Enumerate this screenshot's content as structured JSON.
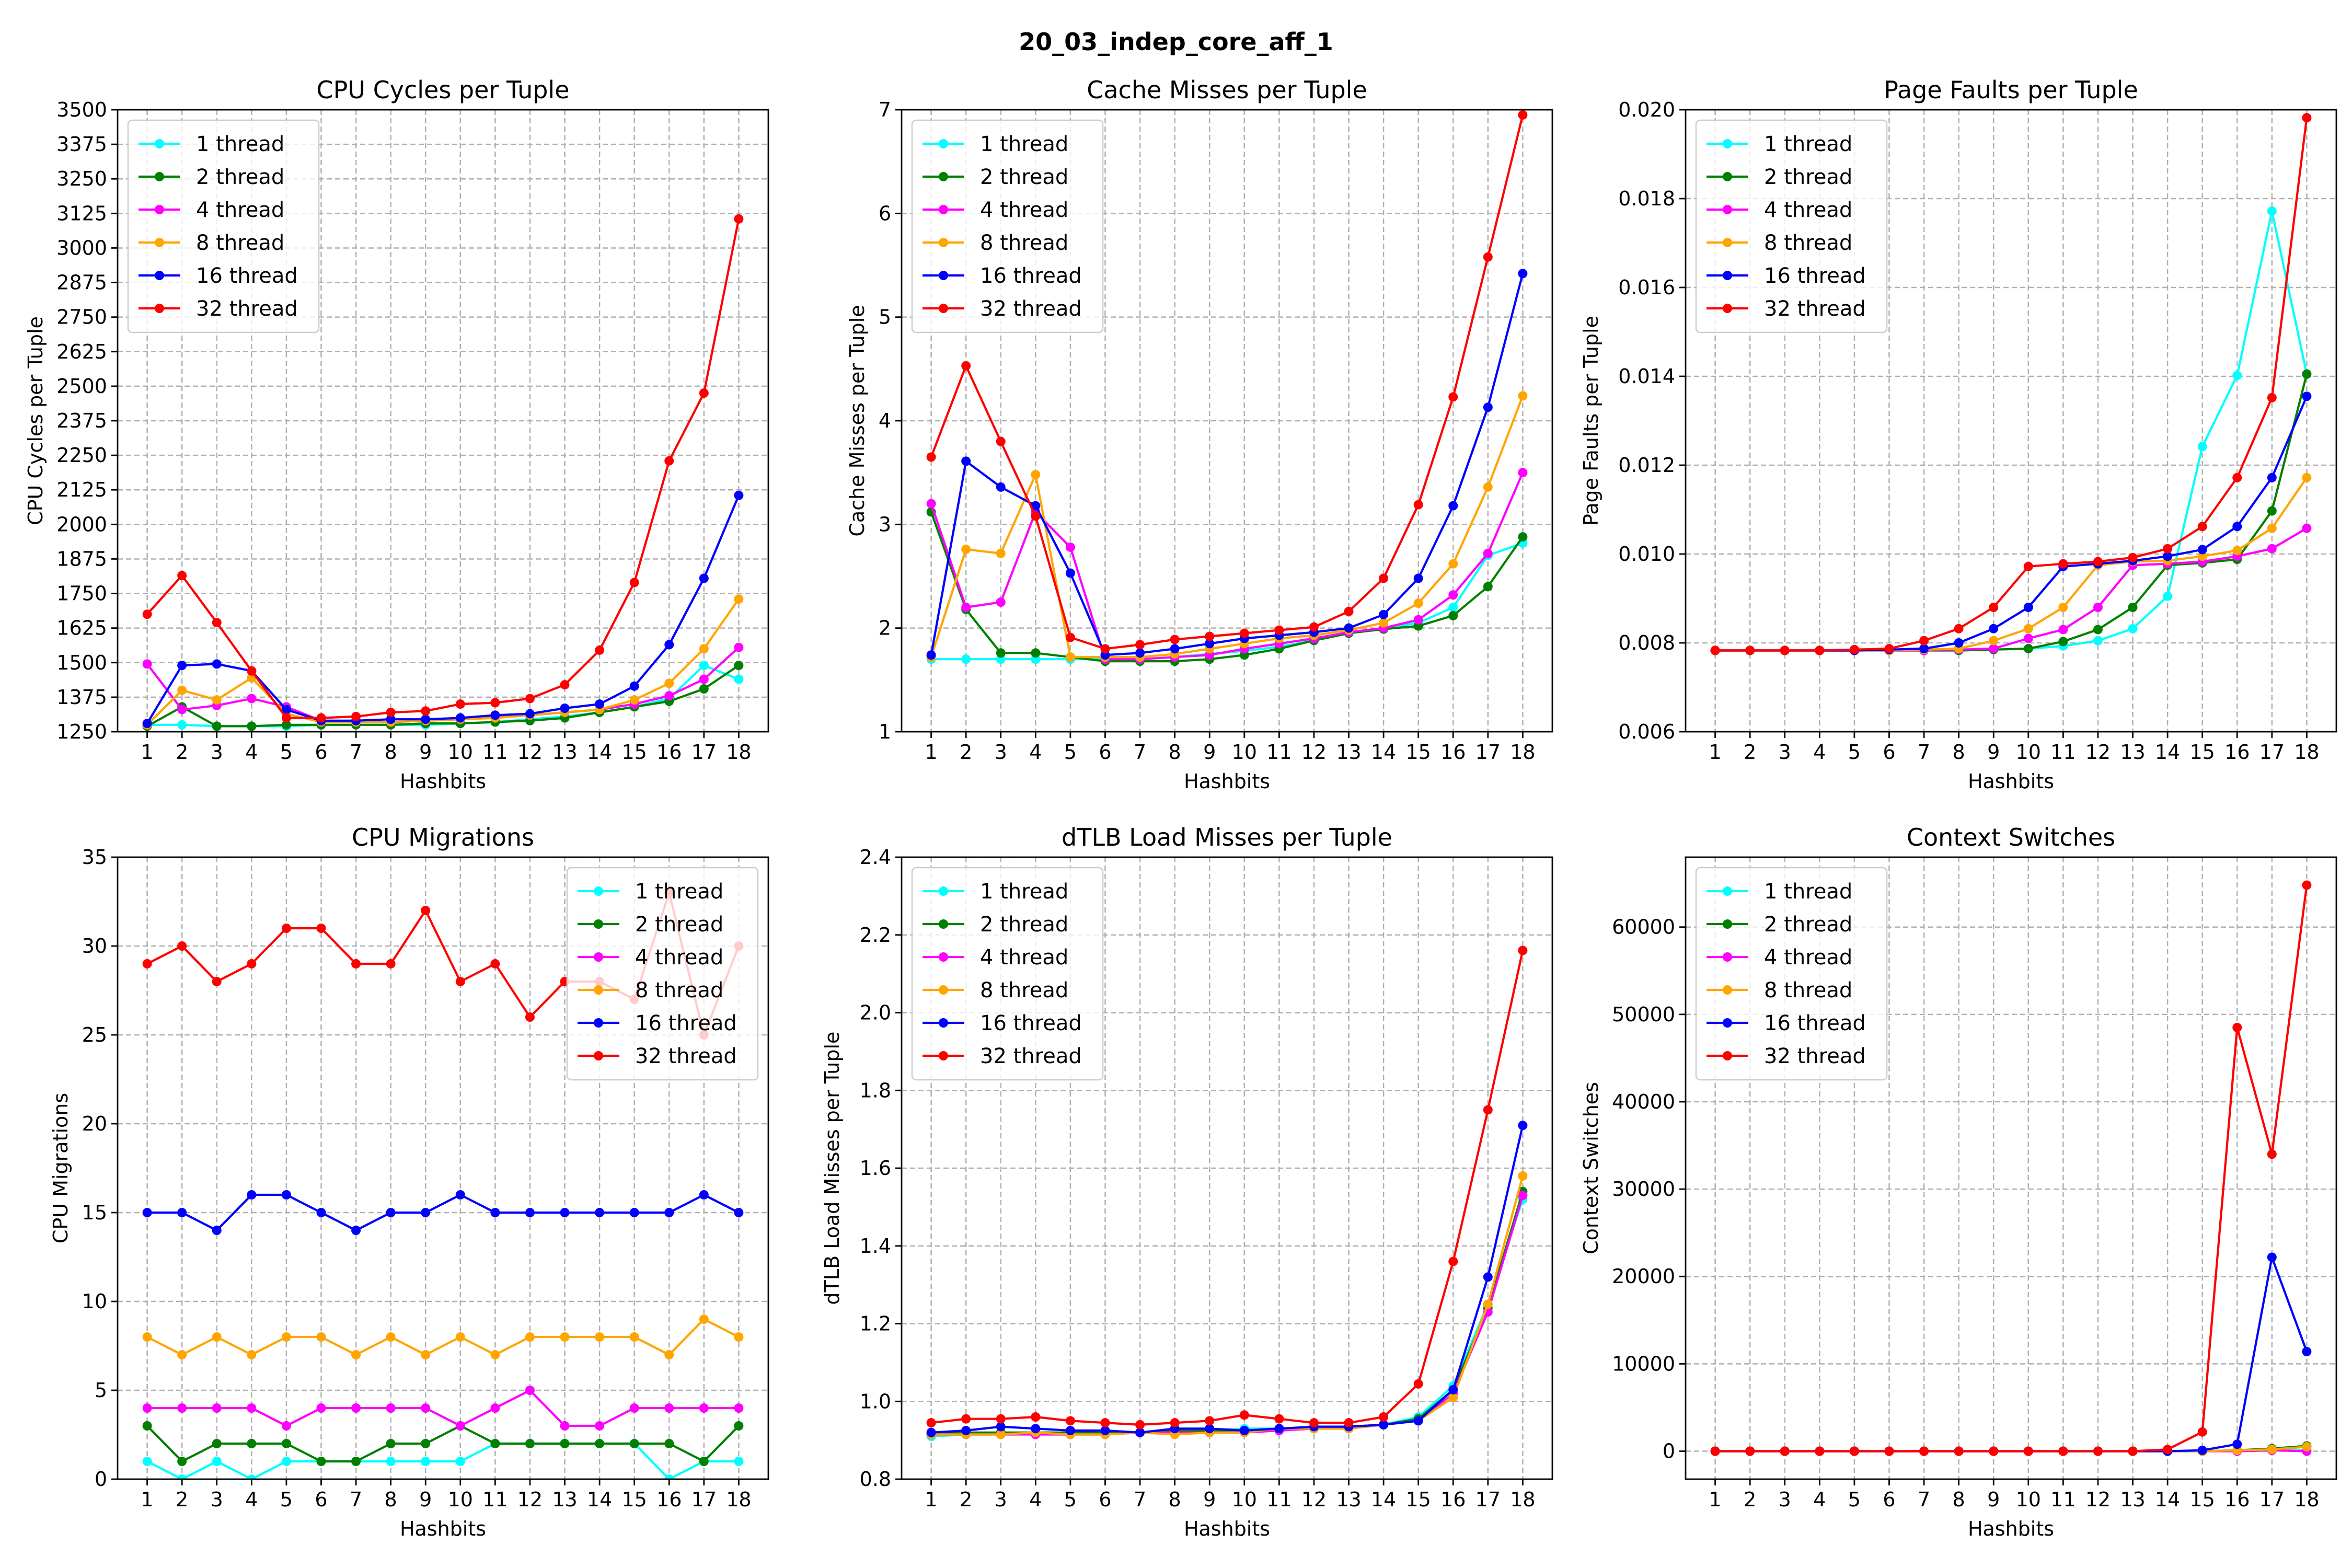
{
  "figure": {
    "title": "20_03_indep_core_aff_1"
  },
  "series_colors": {
    "1 thread": "#00ffff",
    "2 thread": "#008000",
    "4 thread": "#ff00ff",
    "8 thread": "#ffa500",
    "16 thread": "#0000ff",
    "32 thread": "#ff0000"
  },
  "chart_data": [
    {
      "type": "line",
      "title": "CPU Cycles per Tuple",
      "xlabel": "Hashbits",
      "ylabel": "CPU Cycles per Tuple",
      "x": [
        1,
        2,
        3,
        4,
        5,
        6,
        7,
        8,
        9,
        10,
        11,
        12,
        13,
        14,
        15,
        16,
        17,
        18
      ],
      "ylim": [
        1250,
        3500
      ],
      "yticks": [
        1250,
        1375,
        1500,
        1625,
        1750,
        1875,
        2000,
        2125,
        2250,
        2375,
        2500,
        2625,
        2750,
        2875,
        3000,
        3125,
        3250,
        3375,
        3500
      ],
      "legend": "upper-left",
      "grid": true,
      "series": [
        {
          "name": "1 thread",
          "values": [
            1275,
            1275,
            1270,
            1270,
            1270,
            1275,
            1275,
            1275,
            1275,
            1280,
            1285,
            1295,
            1305,
            1320,
            1340,
            1370,
            1490,
            1440
          ]
        },
        {
          "name": "2 thread",
          "values": [
            1270,
            1340,
            1270,
            1270,
            1275,
            1275,
            1275,
            1275,
            1280,
            1280,
            1285,
            1290,
            1300,
            1320,
            1340,
            1360,
            1405,
            1490
          ]
        },
        {
          "name": "4 thread",
          "values": [
            1495,
            1330,
            1345,
            1370,
            1340,
            1290,
            1285,
            1285,
            1290,
            1295,
            1305,
            1310,
            1320,
            1330,
            1350,
            1380,
            1440,
            1555
          ]
        },
        {
          "name": "8 thread",
          "values": [
            1275,
            1400,
            1365,
            1445,
            1315,
            1285,
            1285,
            1285,
            1290,
            1295,
            1300,
            1310,
            1320,
            1330,
            1365,
            1425,
            1550,
            1730
          ]
        },
        {
          "name": "16 thread",
          "values": [
            1280,
            1490,
            1495,
            1470,
            1330,
            1290,
            1290,
            1295,
            1295,
            1300,
            1310,
            1315,
            1335,
            1350,
            1415,
            1565,
            1805,
            2105
          ]
        },
        {
          "name": "32 thread",
          "values": [
            1675,
            1815,
            1645,
            1470,
            1300,
            1300,
            1305,
            1320,
            1325,
            1350,
            1355,
            1370,
            1420,
            1545,
            1790,
            2230,
            2475,
            3105
          ]
        }
      ]
    },
    {
      "type": "line",
      "title": "Cache Misses per Tuple",
      "xlabel": "Hashbits",
      "ylabel": "Cache Misses per Tuple",
      "x": [
        1,
        2,
        3,
        4,
        5,
        6,
        7,
        8,
        9,
        10,
        11,
        12,
        13,
        14,
        15,
        16,
        17,
        18
      ],
      "ylim": [
        1,
        7
      ],
      "yticks": [
        1,
        2,
        3,
        4,
        5,
        6,
        7
      ],
      "legend": "upper-left",
      "grid": true,
      "series": [
        {
          "name": "1 thread",
          "values": [
            1.7,
            1.7,
            1.7,
            1.7,
            1.7,
            1.7,
            1.7,
            1.72,
            1.75,
            1.78,
            1.82,
            1.88,
            1.95,
            2.0,
            2.05,
            2.2,
            2.7,
            2.82
          ]
        },
        {
          "name": "2 thread",
          "values": [
            3.12,
            2.18,
            1.76,
            1.76,
            1.72,
            1.68,
            1.68,
            1.68,
            1.7,
            1.74,
            1.8,
            1.88,
            1.95,
            1.99,
            2.02,
            2.12,
            2.4,
            2.88
          ]
        },
        {
          "name": "4 thread",
          "values": [
            3.2,
            2.2,
            2.25,
            3.12,
            2.78,
            1.7,
            1.7,
            1.72,
            1.74,
            1.8,
            1.85,
            1.9,
            1.96,
            2.0,
            2.08,
            2.32,
            2.72,
            3.5
          ]
        },
        {
          "name": "8 thread",
          "values": [
            1.72,
            2.76,
            2.72,
            3.48,
            1.72,
            1.72,
            1.72,
            1.75,
            1.8,
            1.85,
            1.9,
            1.93,
            1.98,
            2.05,
            2.24,
            2.62,
            3.36,
            4.24
          ]
        },
        {
          "name": "16 thread",
          "values": [
            1.74,
            3.61,
            3.36,
            3.18,
            2.53,
            1.74,
            1.76,
            1.8,
            1.85,
            1.9,
            1.93,
            1.96,
            2.0,
            2.13,
            2.48,
            3.18,
            4.13,
            5.42
          ]
        },
        {
          "name": "32 thread",
          "values": [
            3.65,
            4.53,
            3.8,
            3.08,
            1.91,
            1.8,
            1.84,
            1.89,
            1.92,
            1.95,
            1.98,
            2.01,
            2.16,
            2.48,
            3.19,
            4.23,
            5.58,
            6.95
          ]
        }
      ]
    },
    {
      "type": "line",
      "title": "Page Faults per Tuple",
      "xlabel": "Hashbits",
      "ylabel": "Page Faults per Tuple",
      "x": [
        1,
        2,
        3,
        4,
        5,
        6,
        7,
        8,
        9,
        10,
        11,
        12,
        13,
        14,
        15,
        16,
        17,
        18
      ],
      "ylim": [
        0.006,
        0.02
      ],
      "yticks": [
        0.006,
        0.008,
        0.01,
        0.012,
        0.014,
        0.016,
        0.018,
        0.02
      ],
      "ytick_labels": [
        "0.006",
        "0.008",
        "0.010",
        "0.012",
        "0.014",
        "0.016",
        "0.018",
        "0.020"
      ],
      "legend": "upper-left",
      "grid": true,
      "series": [
        {
          "name": "1 thread",
          "values": [
            0.00783,
            0.00783,
            0.00783,
            0.00783,
            0.00783,
            0.00783,
            0.00783,
            0.00783,
            0.00785,
            0.00787,
            0.00793,
            0.00805,
            0.00832,
            0.00905,
            0.01242,
            0.01402,
            0.01772,
            0.01405
          ]
        },
        {
          "name": "2 thread",
          "values": [
            0.00783,
            0.00783,
            0.00783,
            0.00783,
            0.00783,
            0.00783,
            0.00783,
            0.00783,
            0.00785,
            0.00787,
            0.00803,
            0.0083,
            0.0088,
            0.00975,
            0.0098,
            0.00988,
            0.01097,
            0.01405
          ]
        },
        {
          "name": "4 thread",
          "values": [
            0.00783,
            0.00783,
            0.00783,
            0.00783,
            0.00783,
            0.00783,
            0.00783,
            0.00785,
            0.00787,
            0.0081,
            0.0083,
            0.0088,
            0.00975,
            0.00978,
            0.00983,
            0.00995,
            0.01012,
            0.01058
          ]
        },
        {
          "name": "8 thread",
          "values": [
            0.00783,
            0.00783,
            0.00783,
            0.00783,
            0.00783,
            0.00783,
            0.00785,
            0.00787,
            0.00805,
            0.00832,
            0.0088,
            0.00975,
            0.00983,
            0.00985,
            0.00995,
            0.01008,
            0.01058,
            0.01172
          ]
        },
        {
          "name": "16 thread",
          "values": [
            0.00783,
            0.00783,
            0.00783,
            0.00783,
            0.00783,
            0.00785,
            0.00787,
            0.008,
            0.00832,
            0.0088,
            0.00972,
            0.00978,
            0.00985,
            0.00995,
            0.0101,
            0.01062,
            0.01172,
            0.01355
          ]
        },
        {
          "name": "32 thread",
          "values": [
            0.00783,
            0.00783,
            0.00783,
            0.00783,
            0.00785,
            0.00787,
            0.00805,
            0.00832,
            0.0088,
            0.00972,
            0.00978,
            0.00983,
            0.00992,
            0.01012,
            0.01062,
            0.01172,
            0.01352,
            0.01982
          ]
        }
      ]
    },
    {
      "type": "line",
      "title": "CPU Migrations",
      "xlabel": "Hashbits",
      "ylabel": "CPU Migrations",
      "x": [
        1,
        2,
        3,
        4,
        5,
        6,
        7,
        8,
        9,
        10,
        11,
        12,
        13,
        14,
        15,
        16,
        17,
        18
      ],
      "ylim": [
        0,
        35
      ],
      "yticks": [
        0,
        5,
        10,
        15,
        20,
        25,
        30,
        35
      ],
      "legend": "upper-right",
      "grid": true,
      "series": [
        {
          "name": "1 thread",
          "values": [
            1,
            0,
            1,
            0,
            1,
            1,
            1,
            1,
            1,
            1,
            2,
            2,
            2,
            2,
            2,
            0,
            1,
            1
          ]
        },
        {
          "name": "2 thread",
          "values": [
            3,
            1,
            2,
            2,
            2,
            1,
            1,
            2,
            2,
            3,
            2,
            2,
            2,
            2,
            2,
            2,
            1,
            3
          ]
        },
        {
          "name": "4 thread",
          "values": [
            4,
            4,
            4,
            4,
            3,
            4,
            4,
            4,
            4,
            3,
            4,
            5,
            3,
            3,
            4,
            4,
            4,
            4
          ]
        },
        {
          "name": "8 thread",
          "values": [
            8,
            7,
            8,
            7,
            8,
            8,
            7,
            8,
            7,
            8,
            7,
            8,
            8,
            8,
            8,
            7,
            9,
            8
          ]
        },
        {
          "name": "16 thread",
          "values": [
            15,
            15,
            14,
            16,
            16,
            15,
            14,
            15,
            15,
            16,
            15,
            15,
            15,
            15,
            15,
            15,
            16,
            15
          ]
        },
        {
          "name": "32 thread",
          "values": [
            29,
            30,
            28,
            29,
            31,
            31,
            29,
            29,
            32,
            28,
            29,
            26,
            28,
            28,
            27,
            33,
            25,
            30
          ]
        }
      ]
    },
    {
      "type": "line",
      "title": "dTLB Load Misses per Tuple",
      "xlabel": "Hashbits",
      "ylabel": "dTLB Load Misses per Tuple",
      "x": [
        1,
        2,
        3,
        4,
        5,
        6,
        7,
        8,
        9,
        10,
        11,
        12,
        13,
        14,
        15,
        16,
        17,
        18
      ],
      "ylim": [
        0.8,
        2.4
      ],
      "yticks": [
        0.8,
        1.0,
        1.2,
        1.4,
        1.6,
        1.8,
        2.0,
        2.2,
        2.4
      ],
      "ytick_labels": [
        "0.8",
        "1.0",
        "1.2",
        "1.4",
        "1.6",
        "1.8",
        "2.0",
        "2.2",
        "2.4"
      ],
      "legend": "upper-left",
      "grid": true,
      "series": [
        {
          "name": "1 thread",
          "values": [
            0.91,
            0.915,
            0.915,
            0.92,
            0.915,
            0.915,
            0.92,
            0.925,
            0.925,
            0.93,
            0.93,
            0.93,
            0.935,
            0.94,
            0.96,
            1.04,
            1.25,
            1.52
          ]
        },
        {
          "name": "2 thread",
          "values": [
            0.915,
            0.92,
            0.92,
            0.92,
            0.92,
            0.92,
            0.92,
            0.925,
            0.925,
            0.925,
            0.93,
            0.93,
            0.935,
            0.94,
            0.955,
            1.03,
            1.24,
            1.54
          ]
        },
        {
          "name": "4 thread",
          "values": [
            0.915,
            0.915,
            0.915,
            0.915,
            0.915,
            0.915,
            0.92,
            0.92,
            0.92,
            0.92,
            0.925,
            0.93,
            0.93,
            0.94,
            0.95,
            1.02,
            1.23,
            1.53
          ]
        },
        {
          "name": "8 thread",
          "values": [
            0.915,
            0.915,
            0.915,
            0.92,
            0.915,
            0.915,
            0.92,
            0.915,
            0.92,
            0.92,
            0.93,
            0.93,
            0.93,
            0.94,
            0.95,
            1.01,
            1.25,
            1.58
          ]
        },
        {
          "name": "16 thread",
          "values": [
            0.92,
            0.925,
            0.935,
            0.93,
            0.925,
            0.925,
            0.92,
            0.93,
            0.93,
            0.925,
            0.93,
            0.935,
            0.935,
            0.94,
            0.95,
            1.03,
            1.32,
            1.71
          ]
        },
        {
          "name": "32 thread",
          "values": [
            0.945,
            0.955,
            0.955,
            0.96,
            0.95,
            0.945,
            0.94,
            0.945,
            0.95,
            0.965,
            0.955,
            0.945,
            0.945,
            0.96,
            1.045,
            1.36,
            1.75,
            2.16
          ]
        }
      ]
    },
    {
      "type": "line",
      "title": "Context Switches",
      "xlabel": "Hashbits",
      "ylabel": "Context Switches",
      "x": [
        1,
        2,
        3,
        4,
        5,
        6,
        7,
        8,
        9,
        10,
        11,
        12,
        13,
        14,
        15,
        16,
        17,
        18
      ],
      "ylim": [
        -3200,
        68000
      ],
      "yticks": [
        0,
        10000,
        20000,
        30000,
        40000,
        50000,
        60000
      ],
      "legend": "upper-left",
      "grid": true,
      "series": [
        {
          "name": "1 thread",
          "values": [
            0,
            0,
            0,
            0,
            0,
            0,
            0,
            0,
            0,
            0,
            0,
            0,
            0,
            0,
            0,
            0,
            100,
            100
          ]
        },
        {
          "name": "2 thread",
          "values": [
            0,
            0,
            0,
            0,
            0,
            0,
            0,
            0,
            0,
            0,
            0,
            0,
            0,
            0,
            0,
            100,
            300,
            600
          ]
        },
        {
          "name": "4 thread",
          "values": [
            0,
            0,
            0,
            0,
            0,
            0,
            0,
            0,
            0,
            0,
            0,
            0,
            0,
            0,
            0,
            0,
            100,
            0
          ]
        },
        {
          "name": "8 thread",
          "values": [
            0,
            0,
            0,
            0,
            0,
            0,
            0,
            0,
            0,
            0,
            0,
            0,
            0,
            0,
            0,
            100,
            200,
            500
          ]
        },
        {
          "name": "16 thread",
          "values": [
            0,
            0,
            0,
            0,
            0,
            0,
            0,
            0,
            0,
            0,
            0,
            0,
            0,
            0,
            100,
            800,
            22200,
            11400
          ]
        },
        {
          "name": "32 thread",
          "values": [
            0,
            0,
            0,
            0,
            0,
            0,
            0,
            0,
            0,
            0,
            0,
            0,
            0,
            200,
            2200,
            48500,
            34000,
            64800
          ]
        }
      ]
    }
  ]
}
